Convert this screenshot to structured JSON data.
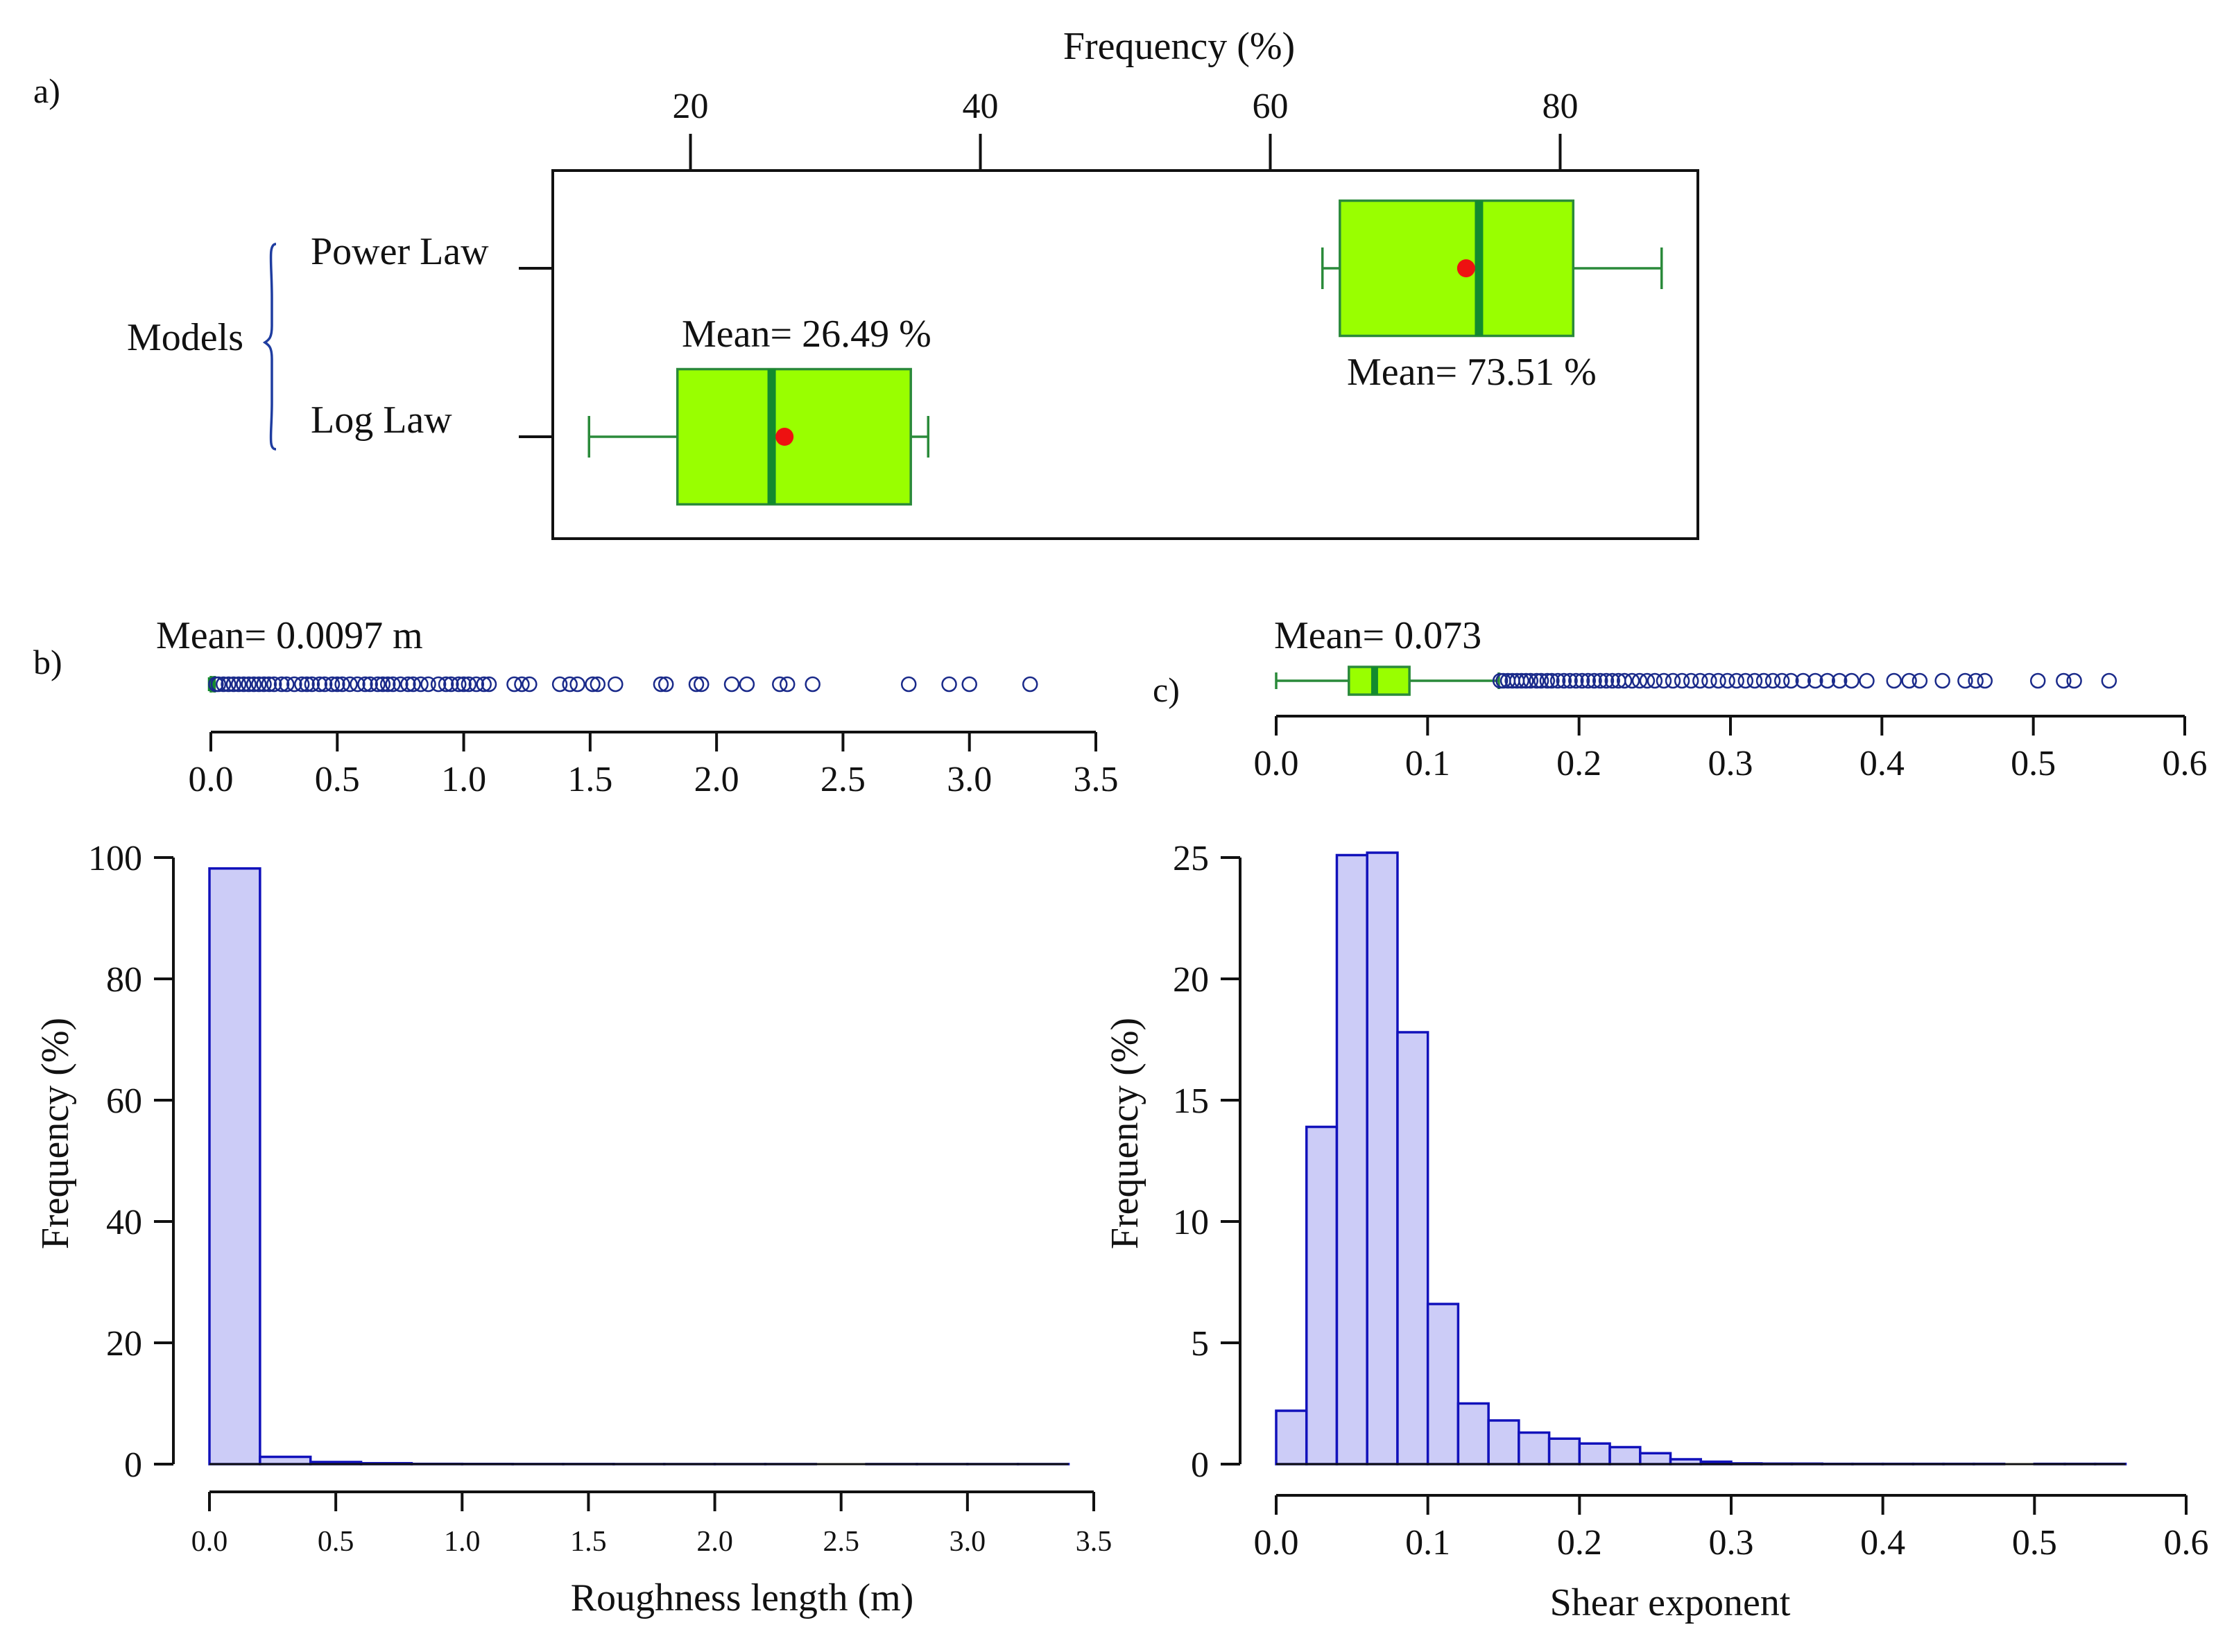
{
  "chart_data": [
    {
      "panel_label": "a)",
      "type": "boxplot",
      "orientation": "horizontal",
      "title": "Frequency (%)",
      "xlim": [
        10.5,
        89.5
      ],
      "x_ticks": [
        "20",
        "40",
        "60",
        "80"
      ],
      "y_group_label": "Models",
      "categories": [
        "Power Law",
        "Log Law"
      ],
      "boxes": [
        {
          "name": "Power Law",
          "whisker_low": 63.6,
          "q1": 64.8,
          "median": 74.4,
          "q3": 80.9,
          "whisker_high": 87.0,
          "mean": 73.51
        },
        {
          "name": "Log Law",
          "whisker_low": 13.0,
          "q1": 19.1,
          "median": 25.6,
          "q3": 35.2,
          "whisker_high": 36.4,
          "mean": 26.49
        }
      ],
      "mean_labels": [
        "Mean= 73.51 %",
        "Mean= 26.49 %"
      ],
      "colors": {
        "box_fill": "#99ff00",
        "box_edge": "#2a8a3a",
        "median": "#128a2e",
        "mean_point": "#ee1111",
        "bracket": "#1f3da0"
      }
    },
    {
      "panel_label": "b)",
      "type": "bar",
      "xlabel": "Roughness length (m)",
      "ylabel": "Frequency (%)",
      "xlim": [
        0,
        3.5
      ],
      "ylim": [
        0,
        100
      ],
      "bins": [
        [
          0.0,
          0.2,
          98.2
        ],
        [
          0.2,
          0.4,
          1.2
        ],
        [
          0.4,
          0.6,
          0.35
        ],
        [
          0.6,
          0.8,
          0.15
        ],
        [
          0.8,
          1.0,
          0.04
        ],
        [
          1.0,
          1.2,
          0.03
        ],
        [
          1.2,
          1.4,
          0.02
        ],
        [
          1.4,
          1.6,
          0.02
        ],
        [
          1.6,
          1.8,
          0.01
        ],
        [
          1.8,
          2.0,
          0.01
        ],
        [
          2.0,
          2.2,
          0.01
        ],
        [
          2.2,
          2.4,
          0.01
        ],
        [
          2.4,
          2.6,
          0.0
        ],
        [
          2.6,
          2.8,
          0.01
        ],
        [
          2.8,
          3.0,
          0.01
        ],
        [
          3.0,
          3.2,
          0.01
        ],
        [
          3.2,
          3.4,
          0.01
        ]
      ],
      "x_ticks": [
        "0.0",
        "0.5",
        "1.0",
        "1.5",
        "2.0",
        "2.5",
        "3.0",
        "3.5"
      ],
      "y_ticks": [
        "0",
        "20",
        "40",
        "60",
        "80",
        "100"
      ],
      "boxplot": {
        "q1": 0.0003,
        "median": 0.002,
        "q3": 0.007,
        "whisker_low": 0.0,
        "whisker_high": 0.015,
        "outliers": [
          0.02,
          0.03,
          0.05,
          0.07,
          0.09,
          0.11,
          0.13,
          0.15,
          0.17,
          0.19,
          0.21,
          0.23,
          0.25,
          0.28,
          0.3,
          0.33,
          0.36,
          0.38,
          0.4,
          0.43,
          0.45,
          0.48,
          0.5,
          0.52,
          0.55,
          0.58,
          0.61,
          0.63,
          0.66,
          0.68,
          0.7,
          0.72,
          0.75,
          0.78,
          0.8,
          0.83,
          0.86,
          0.9,
          0.93,
          0.95,
          0.98,
          1.0,
          1.02,
          1.05,
          1.08,
          1.1,
          1.2,
          1.23,
          1.26,
          1.38,
          1.42,
          1.45,
          1.51,
          1.53,
          1.6,
          1.78,
          1.8,
          1.92,
          1.94,
          2.06,
          2.12,
          2.25,
          2.28,
          2.38,
          2.76,
          2.92,
          3.0,
          3.24
        ]
      },
      "mean_label": "Mean= 0.0097 m",
      "box_x_ticks": [
        "0.0",
        "0.5",
        "1.0",
        "1.5",
        "2.0",
        "2.5",
        "3.0",
        "3.5"
      ],
      "colors": {
        "bar_fill": "#ccccf7",
        "bar_edge": "#1111bb",
        "box_fill": "#99ff00",
        "box_edge": "#2a8a3a",
        "outlier": "#1a2a8a"
      }
    },
    {
      "panel_label": "c)",
      "type": "bar",
      "xlabel": "Shear exponent",
      "ylabel": "Frequency (%)",
      "xlim": [
        0,
        0.6
      ],
      "ylim": [
        0,
        25
      ],
      "bins": [
        [
          0.0,
          0.02,
          2.2
        ],
        [
          0.02,
          0.04,
          13.9
        ],
        [
          0.04,
          0.06,
          25.1
        ],
        [
          0.06,
          0.08,
          25.2
        ],
        [
          0.08,
          0.1,
          17.8
        ],
        [
          0.1,
          0.12,
          6.6
        ],
        [
          0.12,
          0.14,
          2.5
        ],
        [
          0.14,
          0.16,
          1.8
        ],
        [
          0.16,
          0.18,
          1.3
        ],
        [
          0.18,
          0.2,
          1.05
        ],
        [
          0.2,
          0.22,
          0.85
        ],
        [
          0.22,
          0.24,
          0.7
        ],
        [
          0.24,
          0.26,
          0.45
        ],
        [
          0.26,
          0.28,
          0.2
        ],
        [
          0.28,
          0.3,
          0.1
        ],
        [
          0.3,
          0.32,
          0.03
        ],
        [
          0.32,
          0.34,
          0.02
        ],
        [
          0.34,
          0.36,
          0.02
        ],
        [
          0.36,
          0.38,
          0.01
        ],
        [
          0.38,
          0.4,
          0.01
        ],
        [
          0.4,
          0.42,
          0.01
        ],
        [
          0.42,
          0.44,
          0.01
        ],
        [
          0.44,
          0.46,
          0.01
        ],
        [
          0.46,
          0.48,
          0.01
        ],
        [
          0.48,
          0.5,
          0.0
        ],
        [
          0.5,
          0.52,
          0.01
        ],
        [
          0.52,
          0.54,
          0.01
        ],
        [
          0.54,
          0.56,
          0.01
        ]
      ],
      "x_ticks": [
        "0.0",
        "0.1",
        "0.2",
        "0.3",
        "0.4",
        "0.5",
        "0.6"
      ],
      "y_ticks": [
        "0",
        "5",
        "10",
        "15",
        "20",
        "25"
      ],
      "boxplot": {
        "q1": 0.048,
        "median": 0.065,
        "q3": 0.088,
        "whisker_low": 0.0,
        "whisker_high": 0.147,
        "outliers": [
          0.148,
          0.15,
          0.153,
          0.156,
          0.159,
          0.162,
          0.165,
          0.168,
          0.172,
          0.175,
          0.179,
          0.182,
          0.186,
          0.19,
          0.194,
          0.198,
          0.202,
          0.206,
          0.21,
          0.214,
          0.218,
          0.222,
          0.226,
          0.23,
          0.235,
          0.24,
          0.245,
          0.25,
          0.256,
          0.262,
          0.268,
          0.274,
          0.28,
          0.286,
          0.292,
          0.298,
          0.304,
          0.31,
          0.316,
          0.322,
          0.328,
          0.334,
          0.34,
          0.348,
          0.356,
          0.364,
          0.372,
          0.38,
          0.39,
          0.408,
          0.418,
          0.425,
          0.44,
          0.455,
          0.462,
          0.468,
          0.503,
          0.52,
          0.527,
          0.55
        ]
      },
      "mean_label": "Mean= 0.073",
      "box_x_ticks": [
        "0.0",
        "0.1",
        "0.2",
        "0.3",
        "0.4",
        "0.5",
        "0.6"
      ],
      "colors": {
        "bar_fill": "#ccccf7",
        "bar_edge": "#1111bb",
        "box_fill": "#99ff00",
        "box_edge": "#2a8a3a",
        "outlier": "#1a2a8a"
      }
    }
  ]
}
